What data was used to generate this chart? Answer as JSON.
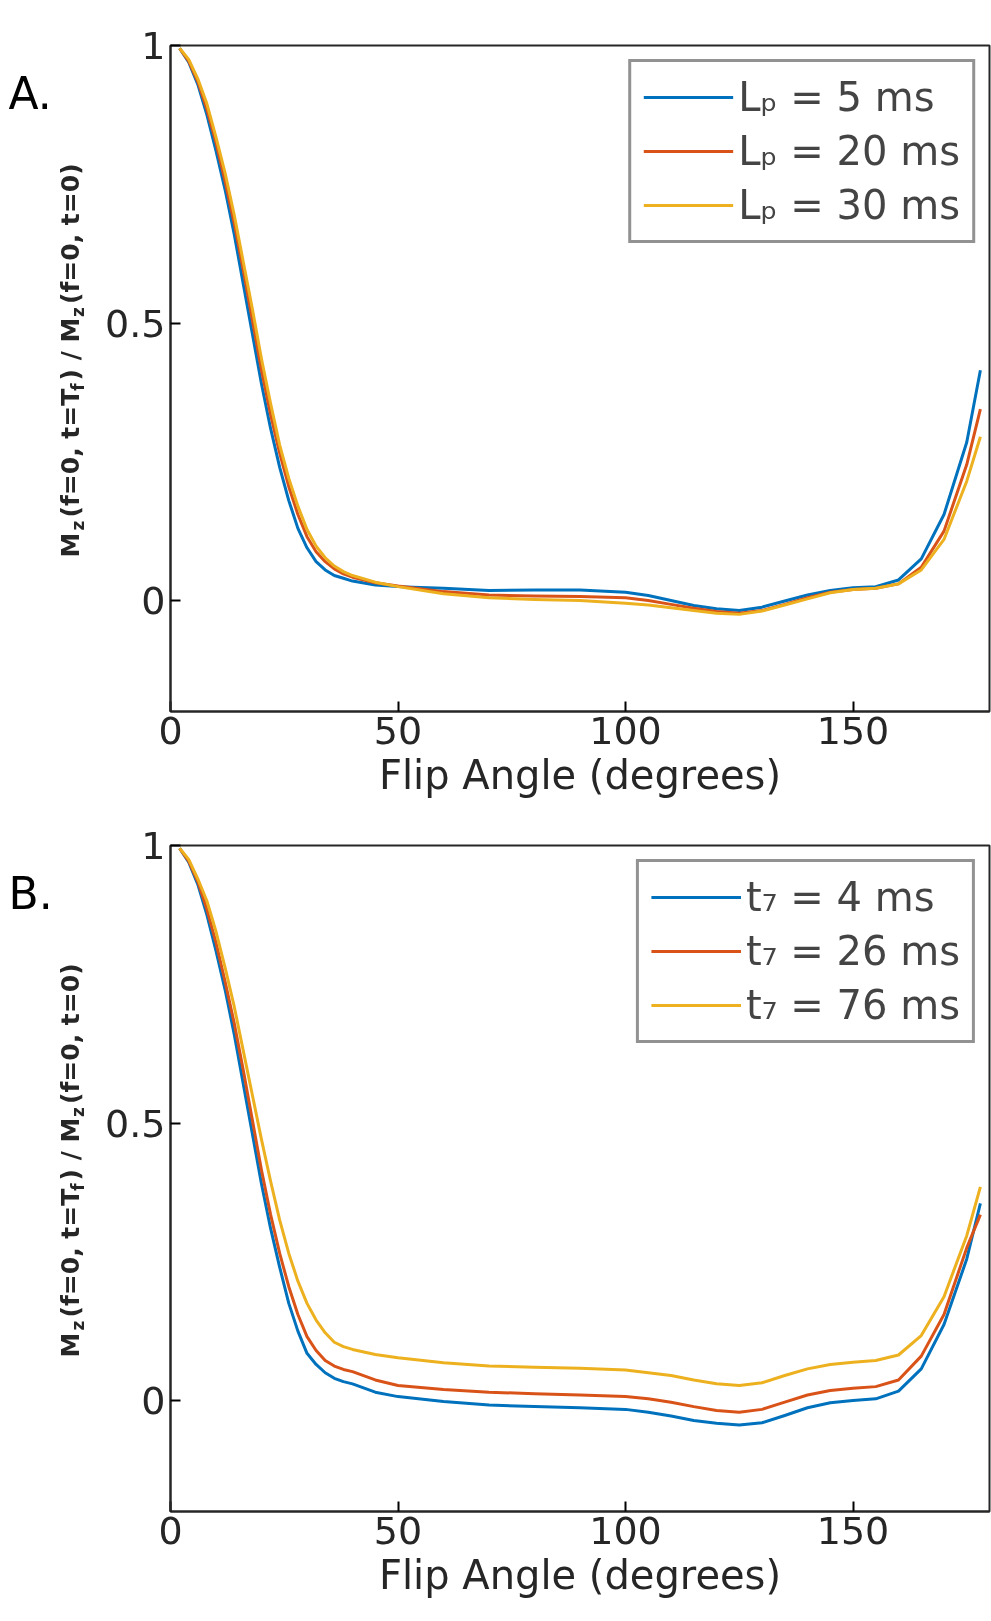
{
  "chart_data": [
    {
      "type": "line",
      "title": "A.",
      "xlabel": "Flip Angle (degrees)",
      "ylabel": "M$_{z}$(f=0, t=T$_{f}$) / M$_{z}$(f=0, t=0)",
      "xlim": [
        0,
        180
      ],
      "xticks": [
        0,
        50,
        100,
        150
      ],
      "ylim": [
        -0.2,
        1
      ],
      "yticks": [
        0,
        0.5,
        1
      ],
      "grid": false,
      "legend": "top right",
      "line_style": "solid",
      "marker": "none",
      "x": [
        2,
        4,
        6,
        8,
        10,
        12,
        14,
        16,
        18,
        20,
        22,
        24,
        26,
        28,
        30,
        32,
        34,
        36,
        38,
        40,
        45,
        50,
        60,
        70,
        80,
        90,
        100,
        105,
        110,
        115,
        120,
        125,
        130,
        135,
        140,
        145,
        150,
        155,
        160,
        165,
        170,
        175,
        178
      ],
      "series": [
        {
          "name": "Lₚ = 5 ms",
          "color": "#0072bd",
          "values": [
            0.995,
            0.97,
            0.93,
            0.875,
            0.81,
            0.74,
            0.66,
            0.57,
            0.48,
            0.39,
            0.31,
            0.24,
            0.18,
            0.13,
            0.095,
            0.07,
            0.055,
            0.045,
            0.04,
            0.035,
            0.028,
            0.025,
            0.022,
            0.018,
            0.019,
            0.019,
            0.015,
            0.009,
            0,
            -0.009,
            -0.015,
            -0.018,
            -0.012,
            -0.001,
            0.01,
            0.018,
            0.023,
            0.025,
            0.037,
            0.075,
            0.155,
            0.285,
            0.415
          ]
        },
        {
          "name": "Lₚ = 20 ms",
          "color": "#d95319",
          "values": [
            0.995,
            0.972,
            0.935,
            0.885,
            0.825,
            0.755,
            0.68,
            0.595,
            0.505,
            0.415,
            0.335,
            0.265,
            0.205,
            0.155,
            0.115,
            0.088,
            0.07,
            0.057,
            0.048,
            0.042,
            0.032,
            0.026,
            0.016,
            0.01,
            0.008,
            0.007,
            0.005,
            0,
            -0.007,
            -0.014,
            -0.02,
            -0.023,
            -0.018,
            -0.007,
            0.005,
            0.015,
            0.02,
            0.022,
            0.03,
            0.06,
            0.125,
            0.245,
            0.345
          ]
        },
        {
          "name": "Lₚ = 30 ms",
          "color": "#edb120",
          "values": [
            0.995,
            0.975,
            0.94,
            0.895,
            0.835,
            0.77,
            0.695,
            0.61,
            0.525,
            0.435,
            0.355,
            0.28,
            0.22,
            0.17,
            0.128,
            0.098,
            0.077,
            0.062,
            0.052,
            0.045,
            0.033,
            0.025,
            0.012,
            0.005,
            0.002,
            0,
            -0.005,
            -0.008,
            -0.013,
            -0.018,
            -0.023,
            -0.025,
            -0.019,
            -0.008,
            0.003,
            0.014,
            0.02,
            0.022,
            0.03,
            0.055,
            0.11,
            0.215,
            0.295
          ]
        }
      ]
    },
    {
      "type": "line",
      "title": "B.",
      "xlabel": "Flip Angle (degrees)",
      "ylabel": "M$_{z}$(f=0, t=T$_{f}$) / M$_{z}$(f=0, t=0)",
      "xlim": [
        0,
        180
      ],
      "xticks": [
        0,
        50,
        100,
        150
      ],
      "ylim": [
        -0.2,
        1
      ],
      "yticks": [
        0,
        0.5,
        1
      ],
      "grid": false,
      "legend": "top right",
      "line_style": "solid",
      "marker": "none",
      "x": [
        2,
        4,
        6,
        8,
        10,
        12,
        14,
        16,
        18,
        20,
        22,
        24,
        26,
        28,
        30,
        32,
        34,
        36,
        38,
        40,
        45,
        50,
        60,
        70,
        80,
        90,
        100,
        105,
        110,
        115,
        120,
        125,
        130,
        135,
        140,
        145,
        150,
        155,
        160,
        165,
        170,
        175,
        178
      ],
      "series": [
        {
          "name": "t₇ = 4 ms",
          "color": "#0072bd",
          "values": [
            0.995,
            0.97,
            0.93,
            0.875,
            0.81,
            0.74,
            0.66,
            0.57,
            0.48,
            0.39,
            0.31,
            0.24,
            0.175,
            0.125,
            0.085,
            0.065,
            0.05,
            0.04,
            0.034,
            0.03,
            0.015,
            0.007,
            -0.002,
            -0.008,
            -0.011,
            -0.013,
            -0.016,
            -0.021,
            -0.028,
            -0.036,
            -0.041,
            -0.044,
            -0.04,
            -0.027,
            -0.013,
            -0.004,
            0,
            0.003,
            0.017,
            0.057,
            0.137,
            0.255,
            0.355
          ]
        },
        {
          "name": "t₇ = 26 ms",
          "color": "#d95319",
          "values": [
            0.995,
            0.972,
            0.935,
            0.885,
            0.825,
            0.755,
            0.68,
            0.595,
            0.505,
            0.415,
            0.335,
            0.265,
            0.205,
            0.155,
            0.115,
            0.09,
            0.072,
            0.062,
            0.056,
            0.052,
            0.037,
            0.027,
            0.02,
            0.015,
            0.012,
            0.01,
            0.007,
            0.003,
            -0.003,
            -0.011,
            -0.018,
            -0.021,
            -0.016,
            -0.003,
            0.01,
            0.018,
            0.022,
            0.025,
            0.037,
            0.08,
            0.155,
            0.275,
            0.335
          ]
        },
        {
          "name": "t₇ = 76 ms",
          "color": "#edb120",
          "values": [
            0.995,
            0.975,
            0.94,
            0.9,
            0.845,
            0.78,
            0.71,
            0.63,
            0.55,
            0.47,
            0.395,
            0.325,
            0.265,
            0.215,
            0.175,
            0.145,
            0.122,
            0.105,
            0.097,
            0.092,
            0.083,
            0.077,
            0.068,
            0.062,
            0.06,
            0.058,
            0.055,
            0.05,
            0.045,
            0.037,
            0.03,
            0.027,
            0.032,
            0.045,
            0.057,
            0.065,
            0.069,
            0.072,
            0.082,
            0.117,
            0.187,
            0.297,
            0.385
          ]
        }
      ]
    }
  ]
}
